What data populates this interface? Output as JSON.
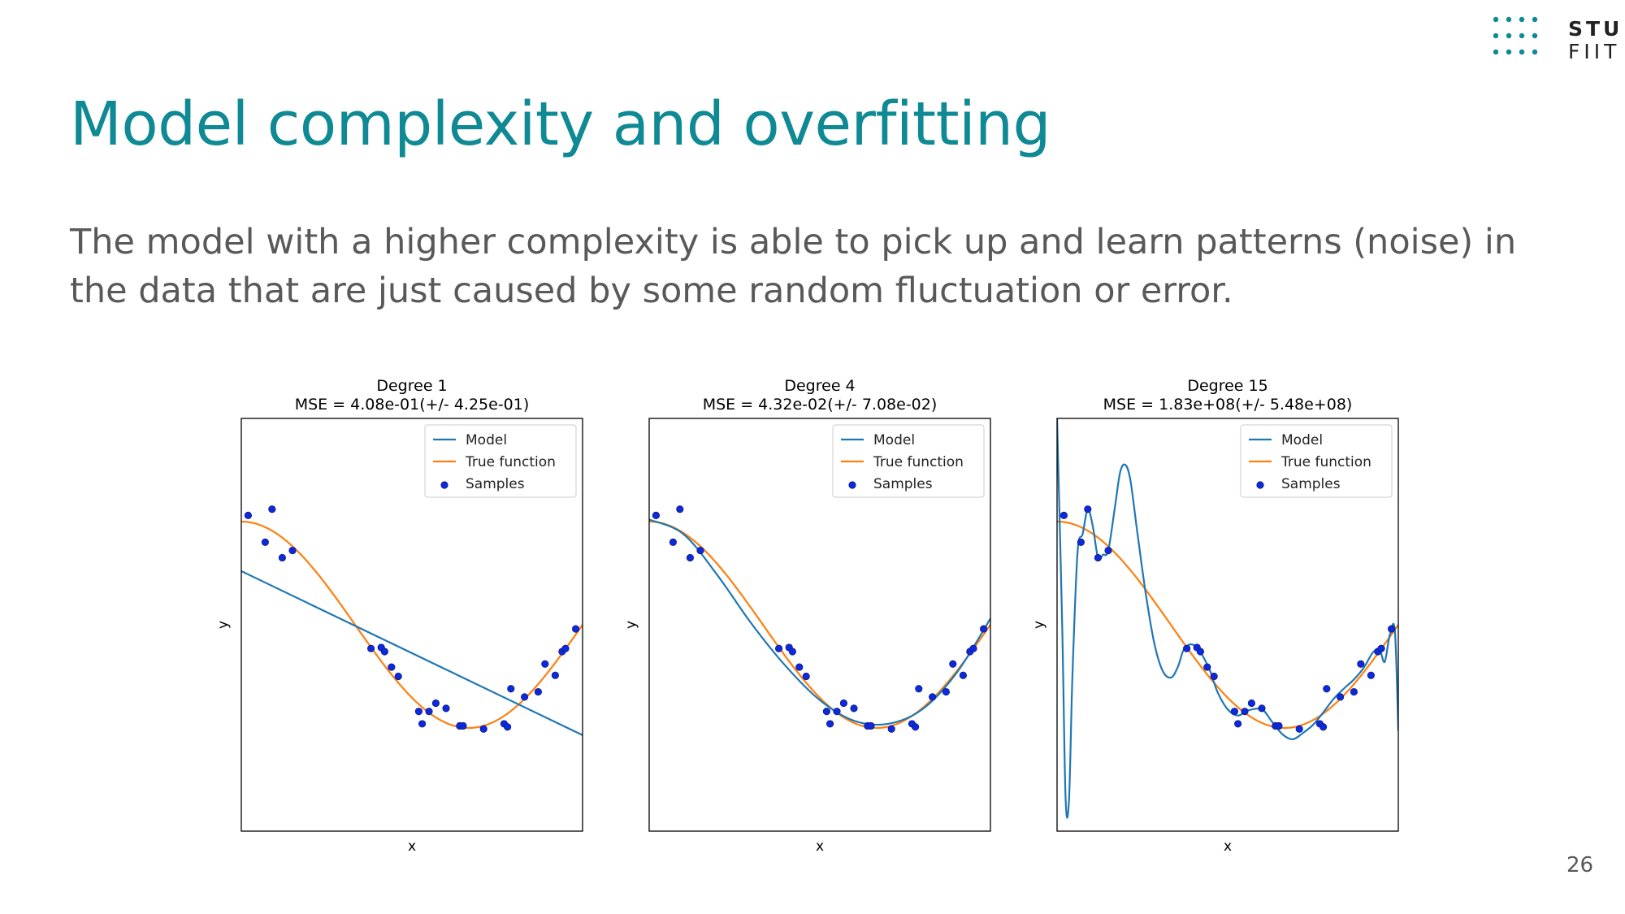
{
  "slide": {
    "title": "Model complexity and overfitting",
    "body_line1": "The model with a higher complexity is able to pick up and learn patterns (noise) in",
    "body_line2": "the data that are just caused by some random fluctuation or error.",
    "page_number": "26"
  },
  "logo": {
    "line1": "STU",
    "line2": "FIIT",
    "color": "#0f8a94"
  },
  "colors": {
    "model": "#1f77b4",
    "true_function": "#ff7f0e",
    "samples": "#0a2ae0",
    "title": "#0f8a94",
    "text": "#595959"
  },
  "chart_data": [
    {
      "type": "line",
      "title": "Degree 1",
      "subtitle": "MSE = 4.08e-01(+/- 4.25e-01)",
      "xlabel": "x",
      "ylabel": "y",
      "xlim": [
        0,
        1
      ],
      "ylim": [
        -2,
        2
      ],
      "legend": [
        "Model",
        "True function",
        "Samples"
      ],
      "legend_position": "top-right",
      "samples": [
        [
          0.02,
          1.06
        ],
        [
          0.07,
          0.8
        ],
        [
          0.09,
          1.12
        ],
        [
          0.12,
          0.65
        ],
        [
          0.15,
          0.72
        ],
        [
          0.38,
          -0.23
        ],
        [
          0.41,
          -0.22
        ],
        [
          0.42,
          -0.26
        ],
        [
          0.44,
          -0.41
        ],
        [
          0.46,
          -0.5
        ],
        [
          0.52,
          -0.84
        ],
        [
          0.53,
          -0.96
        ],
        [
          0.55,
          -0.84
        ],
        [
          0.57,
          -0.76
        ],
        [
          0.6,
          -0.81
        ],
        [
          0.64,
          -0.98
        ],
        [
          0.65,
          -0.98
        ],
        [
          0.71,
          -1.01
        ],
        [
          0.77,
          -0.96
        ],
        [
          0.78,
          -0.99
        ],
        [
          0.79,
          -0.62
        ],
        [
          0.83,
          -0.7
        ],
        [
          0.87,
          -0.65
        ],
        [
          0.89,
          -0.38
        ],
        [
          0.92,
          -0.49
        ],
        [
          0.94,
          -0.26
        ],
        [
          0.95,
          -0.23
        ],
        [
          0.98,
          -0.04
        ]
      ],
      "model": [
        [
          0,
          0.52
        ],
        [
          1,
          -1.07
        ]
      ]
    },
    {
      "type": "line",
      "title": "Degree 4",
      "subtitle": "MSE = 4.32e-02(+/- 7.08e-02)",
      "xlabel": "x",
      "ylabel": "y",
      "xlim": [
        0,
        1
      ],
      "ylim": [
        -2,
        2
      ],
      "legend": [
        "Model",
        "True function",
        "Samples"
      ],
      "legend_position": "top-right",
      "samples": [
        [
          0.02,
          1.06
        ],
        [
          0.07,
          0.8
        ],
        [
          0.09,
          1.12
        ],
        [
          0.12,
          0.65
        ],
        [
          0.15,
          0.72
        ],
        [
          0.38,
          -0.23
        ],
        [
          0.41,
          -0.22
        ],
        [
          0.42,
          -0.26
        ],
        [
          0.44,
          -0.41
        ],
        [
          0.46,
          -0.5
        ],
        [
          0.52,
          -0.84
        ],
        [
          0.53,
          -0.96
        ],
        [
          0.55,
          -0.84
        ],
        [
          0.57,
          -0.76
        ],
        [
          0.6,
          -0.81
        ],
        [
          0.64,
          -0.98
        ],
        [
          0.65,
          -0.98
        ],
        [
          0.71,
          -1.01
        ],
        [
          0.77,
          -0.96
        ],
        [
          0.78,
          -0.99
        ],
        [
          0.79,
          -0.62
        ],
        [
          0.83,
          -0.7
        ],
        [
          0.87,
          -0.65
        ],
        [
          0.89,
          -0.38
        ],
        [
          0.92,
          -0.49
        ],
        [
          0.94,
          -0.26
        ],
        [
          0.95,
          -0.23
        ],
        [
          0.98,
          -0.04
        ]
      ],
      "model": [
        [
          0,
          1.02
        ],
        [
          0.1,
          0.88
        ],
        [
          0.2,
          0.48
        ],
        [
          0.3,
          0.01
        ],
        [
          0.4,
          -0.4
        ],
        [
          0.5,
          -0.73
        ],
        [
          0.6,
          -0.93
        ],
        [
          0.7,
          -0.96
        ],
        [
          0.8,
          -0.82
        ],
        [
          0.9,
          -0.47
        ],
        [
          1.0,
          0.06
        ]
      ]
    },
    {
      "type": "line",
      "title": "Degree 15",
      "subtitle": "MSE = 1.83e+08(+/- 5.48e+08)",
      "xlabel": "x",
      "ylabel": "y",
      "xlim": [
        0,
        1
      ],
      "ylim": [
        -2,
        2
      ],
      "legend": [
        "Model",
        "True function",
        "Samples"
      ],
      "legend_position": "top-right",
      "samples": [
        [
          0.02,
          1.06
        ],
        [
          0.07,
          0.8
        ],
        [
          0.09,
          1.12
        ],
        [
          0.12,
          0.65
        ],
        [
          0.15,
          0.72
        ],
        [
          0.38,
          -0.23
        ],
        [
          0.41,
          -0.22
        ],
        [
          0.42,
          -0.26
        ],
        [
          0.44,
          -0.41
        ],
        [
          0.46,
          -0.5
        ],
        [
          0.52,
          -0.84
        ],
        [
          0.53,
          -0.96
        ],
        [
          0.55,
          -0.84
        ],
        [
          0.57,
          -0.76
        ],
        [
          0.6,
          -0.81
        ],
        [
          0.64,
          -0.98
        ],
        [
          0.65,
          -0.98
        ],
        [
          0.71,
          -1.01
        ],
        [
          0.77,
          -0.96
        ],
        [
          0.78,
          -0.99
        ],
        [
          0.79,
          -0.62
        ],
        [
          0.83,
          -0.7
        ],
        [
          0.87,
          -0.65
        ],
        [
          0.89,
          -0.38
        ],
        [
          0.92,
          -0.49
        ],
        [
          0.94,
          -0.26
        ],
        [
          0.95,
          -0.23
        ],
        [
          0.98,
          -0.04
        ]
      ],
      "model": [
        [
          0.0,
          2.0
        ],
        [
          0.015,
          0.0
        ],
        [
          0.025,
          -1.68
        ],
        [
          0.035,
          -1.7
        ],
        [
          0.045,
          -0.5
        ],
        [
          0.06,
          0.7
        ],
        [
          0.075,
          0.88
        ],
        [
          0.09,
          1.12
        ],
        [
          0.105,
          0.95
        ],
        [
          0.12,
          0.65
        ],
        [
          0.135,
          0.68
        ],
        [
          0.15,
          0.72
        ],
        [
          0.17,
          1.15
        ],
        [
          0.185,
          1.48
        ],
        [
          0.2,
          1.55
        ],
        [
          0.215,
          1.4
        ],
        [
          0.235,
          0.9
        ],
        [
          0.26,
          0.3
        ],
        [
          0.285,
          -0.18
        ],
        [
          0.31,
          -0.45
        ],
        [
          0.335,
          -0.51
        ],
        [
          0.355,
          -0.4
        ],
        [
          0.37,
          -0.25
        ],
        [
          0.39,
          -0.19
        ],
        [
          0.41,
          -0.22
        ],
        [
          0.43,
          -0.32
        ],
        [
          0.45,
          -0.46
        ],
        [
          0.47,
          -0.65
        ],
        [
          0.5,
          -0.82
        ],
        [
          0.53,
          -0.88
        ],
        [
          0.56,
          -0.83
        ],
        [
          0.6,
          -0.82
        ],
        [
          0.63,
          -0.94
        ],
        [
          0.66,
          -1.06
        ],
        [
          0.69,
          -1.11
        ],
        [
          0.72,
          -1.05
        ],
        [
          0.75,
          -0.97
        ],
        [
          0.78,
          -0.85
        ],
        [
          0.81,
          -0.72
        ],
        [
          0.84,
          -0.62
        ],
        [
          0.87,
          -0.53
        ],
        [
          0.9,
          -0.41
        ],
        [
          0.925,
          -0.27
        ],
        [
          0.945,
          -0.24
        ],
        [
          0.96,
          -0.36
        ],
        [
          0.975,
          -0.1
        ],
        [
          0.99,
          -0.06
        ],
        [
          1.0,
          -1.03
        ]
      ]
    }
  ]
}
